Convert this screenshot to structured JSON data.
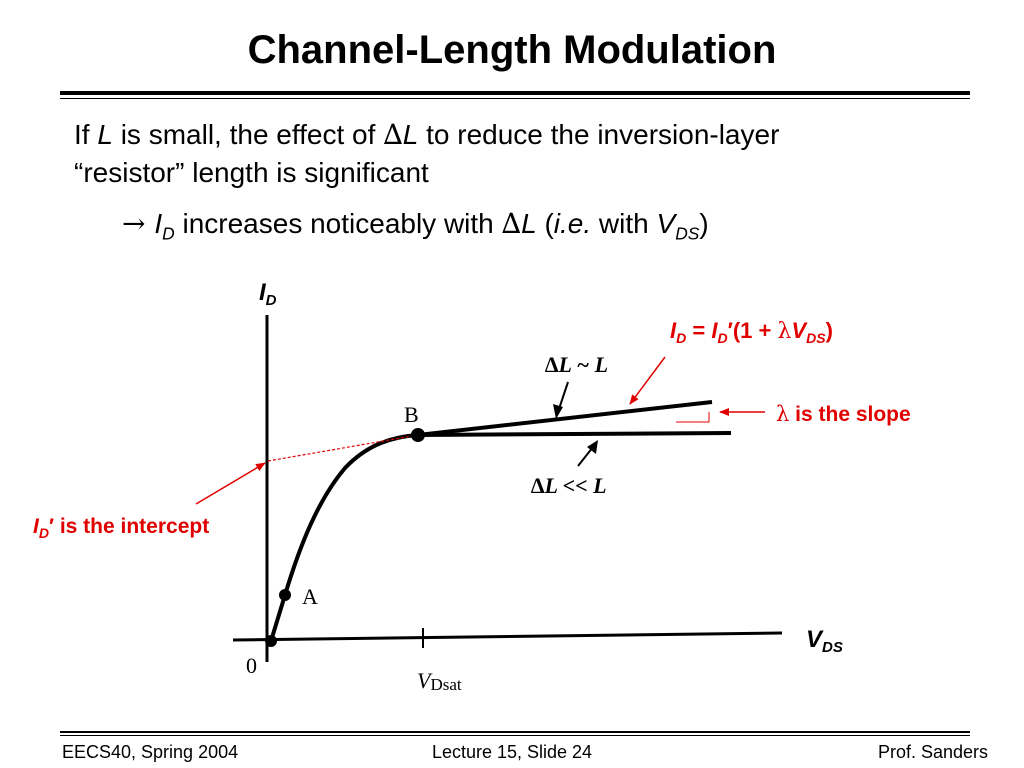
{
  "slide": {
    "title": "Channel-Length Modulation",
    "line1": {
      "pre": "If ",
      "L": "L",
      "mid": " is small, the effect of ",
      "delta": "∆",
      "L2": "L",
      "post": " to reduce the inversion-layer"
    },
    "line2": "“resistor” length is significant",
    "line3": {
      "arrow": "→ ",
      "I": "I",
      "sub_D": "D",
      "mid": " increases noticeably with ",
      "delta": "∆",
      "L": "L",
      "open": " (",
      "ie": "i.e.",
      "with": " with ",
      "V": "V",
      "sub_DS": "DS",
      "close": ")"
    }
  },
  "diagram": {
    "axis_y": {
      "I": "I",
      "sub": "D"
    },
    "axis_x": {
      "V": "V",
      "sub": "DS"
    },
    "origin": "0",
    "vdsat": {
      "V": "V",
      "sub": "Dsat"
    },
    "point_a": "A",
    "point_b": "B",
    "label_dl_similar": "∆L ~ L",
    "label_dl_much_less": "∆L << L",
    "equation": {
      "i1": "I",
      "s1": "D",
      "eq": " = ",
      "i2": "I",
      "s2": "D",
      "prime_open": "′(1 + ",
      "lambda": "λ",
      "v": "V",
      "s3": "DS",
      "close": ")"
    },
    "slope_label": {
      "lambda": "λ",
      "text": " is the slope"
    },
    "intercept_label": {
      "i": "I",
      "sub": "D",
      "text": "′ is the intercept"
    },
    "colors": {
      "annotation": "#e00000",
      "curve": "#000000"
    }
  },
  "footer": {
    "left": "EECS40, Spring 2004",
    "center": "Lecture 15, Slide 24",
    "right": "Prof. Sanders"
  }
}
